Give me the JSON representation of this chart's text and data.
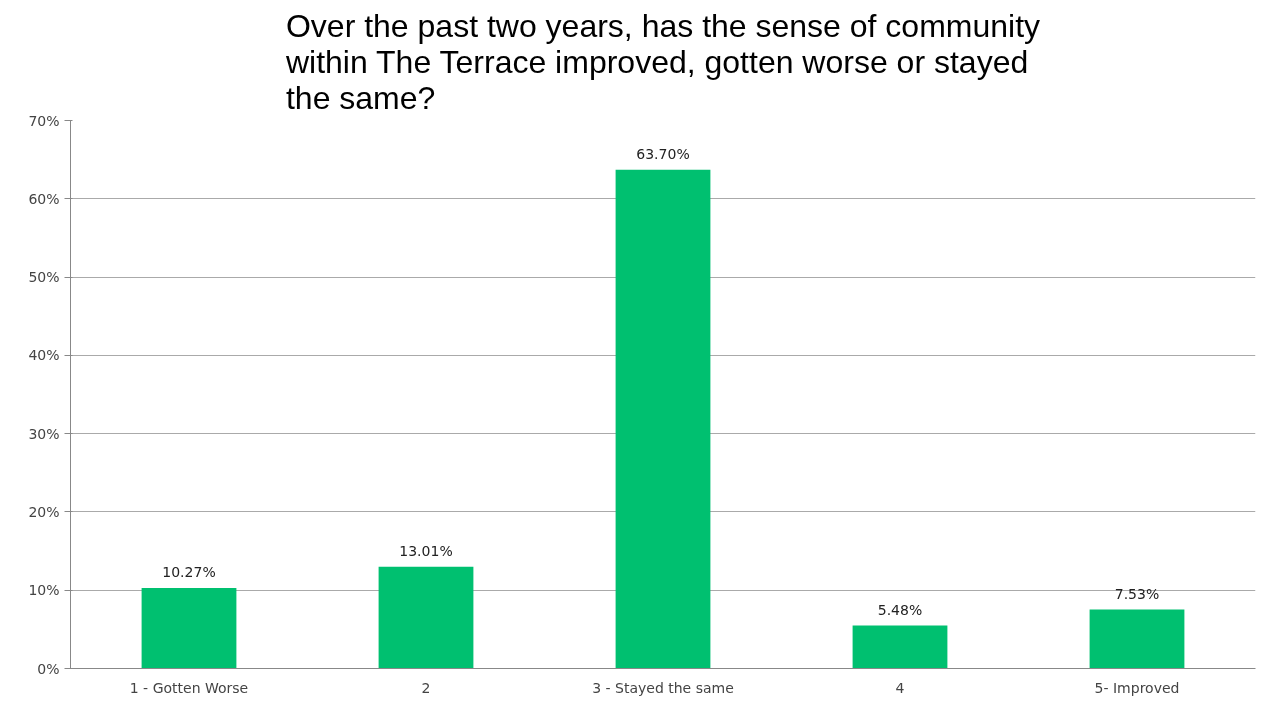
{
  "chart_data": {
    "type": "bar",
    "title": "Over the past two years, has the sense of community within The Terrace improved, gotten worse or stayed the same?",
    "categories": [
      "1 - Gotten Worse",
      "2",
      "3 - Stayed the same",
      "4",
      "5- Improved"
    ],
    "values": [
      10.27,
      13.01,
      63.7,
      5.48,
      7.53
    ],
    "value_labels": [
      "10.27%",
      "13.01%",
      "63.70%",
      "5.48%",
      "7.53%"
    ],
    "color": "#00c070",
    "ylim": [
      0,
      70
    ],
    "yticks": [
      {
        "value": 0,
        "label": "0%"
      },
      {
        "value": 10,
        "label": "10%"
      },
      {
        "value": 20,
        "label": "20%"
      },
      {
        "value": 30,
        "label": "30%"
      },
      {
        "value": 40,
        "label": "40%"
      },
      {
        "value": 50,
        "label": "50%"
      },
      {
        "value": 60,
        "label": "60%"
      },
      {
        "value": 70,
        "label": "70%"
      }
    ],
    "grid": "y"
  }
}
